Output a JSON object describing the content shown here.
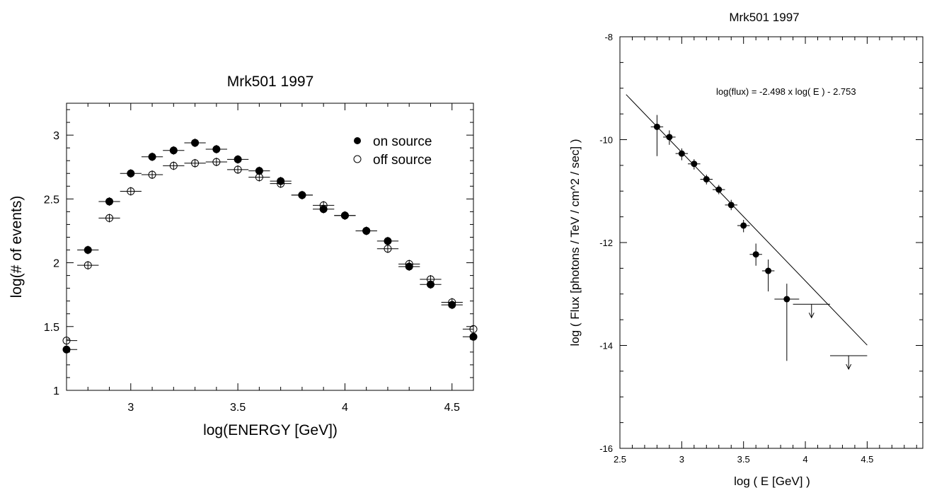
{
  "chart_data": [
    {
      "type": "scatter",
      "title": "Mrk501  1997",
      "xlabel": "log(ENERGY [GeV])",
      "ylabel": "log(# of events)",
      "xlim": [
        2.7,
        4.6
      ],
      "ylim": [
        1.0,
        3.25
      ],
      "xticks": [
        "3",
        "3.5",
        "4",
        "4.5"
      ],
      "yticks": [
        "1",
        "1.5",
        "2",
        "2.5",
        "3"
      ],
      "grid": false,
      "legend_position": "top-right",
      "x_halfwidth": 0.05,
      "series": [
        {
          "name": "on source",
          "marker": "filled-circle",
          "x": [
            2.7,
            2.8,
            2.9,
            3.0,
            3.1,
            3.2,
            3.3,
            3.4,
            3.5,
            3.6,
            3.7,
            3.8,
            3.9,
            4.0,
            4.1,
            4.2,
            4.3,
            4.4,
            4.5,
            4.6
          ],
          "y": [
            1.32,
            2.1,
            2.48,
            2.7,
            2.83,
            2.88,
            2.94,
            2.89,
            2.81,
            2.72,
            2.64,
            2.53,
            2.42,
            2.37,
            2.25,
            2.17,
            1.97,
            1.83,
            1.67,
            1.42
          ]
        },
        {
          "name": "off source",
          "marker": "open-circle",
          "x": [
            2.7,
            2.8,
            2.9,
            3.0,
            3.1,
            3.2,
            3.3,
            3.4,
            3.5,
            3.6,
            3.7,
            3.8,
            3.9,
            4.0,
            4.1,
            4.2,
            4.3,
            4.4,
            4.5,
            4.6
          ],
          "y": [
            1.39,
            1.98,
            2.35,
            2.56,
            2.69,
            2.76,
            2.78,
            2.79,
            2.73,
            2.67,
            2.62,
            2.53,
            2.45,
            2.37,
            2.25,
            2.11,
            1.99,
            1.87,
            1.69,
            1.48
          ]
        }
      ]
    },
    {
      "type": "scatter",
      "title": "Mrk501 1997",
      "xlabel": "log ( E  [GeV] )",
      "ylabel": "log ( Flux  [photons / TeV / cm^2 / sec] )",
      "xlim": [
        2.5,
        4.95
      ],
      "ylim": [
        -16,
        -8
      ],
      "xticks": [
        "2.5",
        "3",
        "3.5",
        "4",
        "4.5"
      ],
      "yticks": [
        "-16",
        "-14",
        "-12",
        "-10",
        "-8"
      ],
      "grid": false,
      "annotation": "log(flux) = -2.498 x log( E ) - 2.753",
      "fit_line": {
        "slope": -2.498,
        "intercept": -2.753,
        "x": [
          2.55,
          4.5
        ]
      },
      "series": [
        {
          "name": "",
          "marker": "filled-circle",
          "x": [
            2.8,
            2.9,
            3.0,
            3.1,
            3.2,
            3.3,
            3.4,
            3.5,
            3.6,
            3.7,
            3.85
          ],
          "y": [
            -9.75,
            -9.95,
            -10.27,
            -10.47,
            -10.77,
            -10.97,
            -11.27,
            -11.67,
            -12.23,
            -12.55,
            -13.1
          ],
          "y_low": [
            -10.32,
            -10.1,
            -10.4,
            -10.58,
            -10.87,
            -11.06,
            -11.37,
            -11.8,
            -12.45,
            -12.95,
            -14.3
          ],
          "y_high": [
            -9.52,
            -9.82,
            -10.17,
            -10.38,
            -10.68,
            -10.88,
            -11.17,
            -11.56,
            -12.02,
            -12.33,
            -12.8
          ],
          "x_halfwidth": [
            0.05,
            0.05,
            0.05,
            0.05,
            0.05,
            0.05,
            0.05,
            0.05,
            0.05,
            0.05,
            0.1
          ]
        }
      ],
      "upper_limits": [
        {
          "x": 4.05,
          "y": -13.2,
          "x_halfwidth": 0.15
        },
        {
          "x": 4.35,
          "y": -14.2,
          "x_halfwidth": 0.15
        }
      ]
    }
  ]
}
